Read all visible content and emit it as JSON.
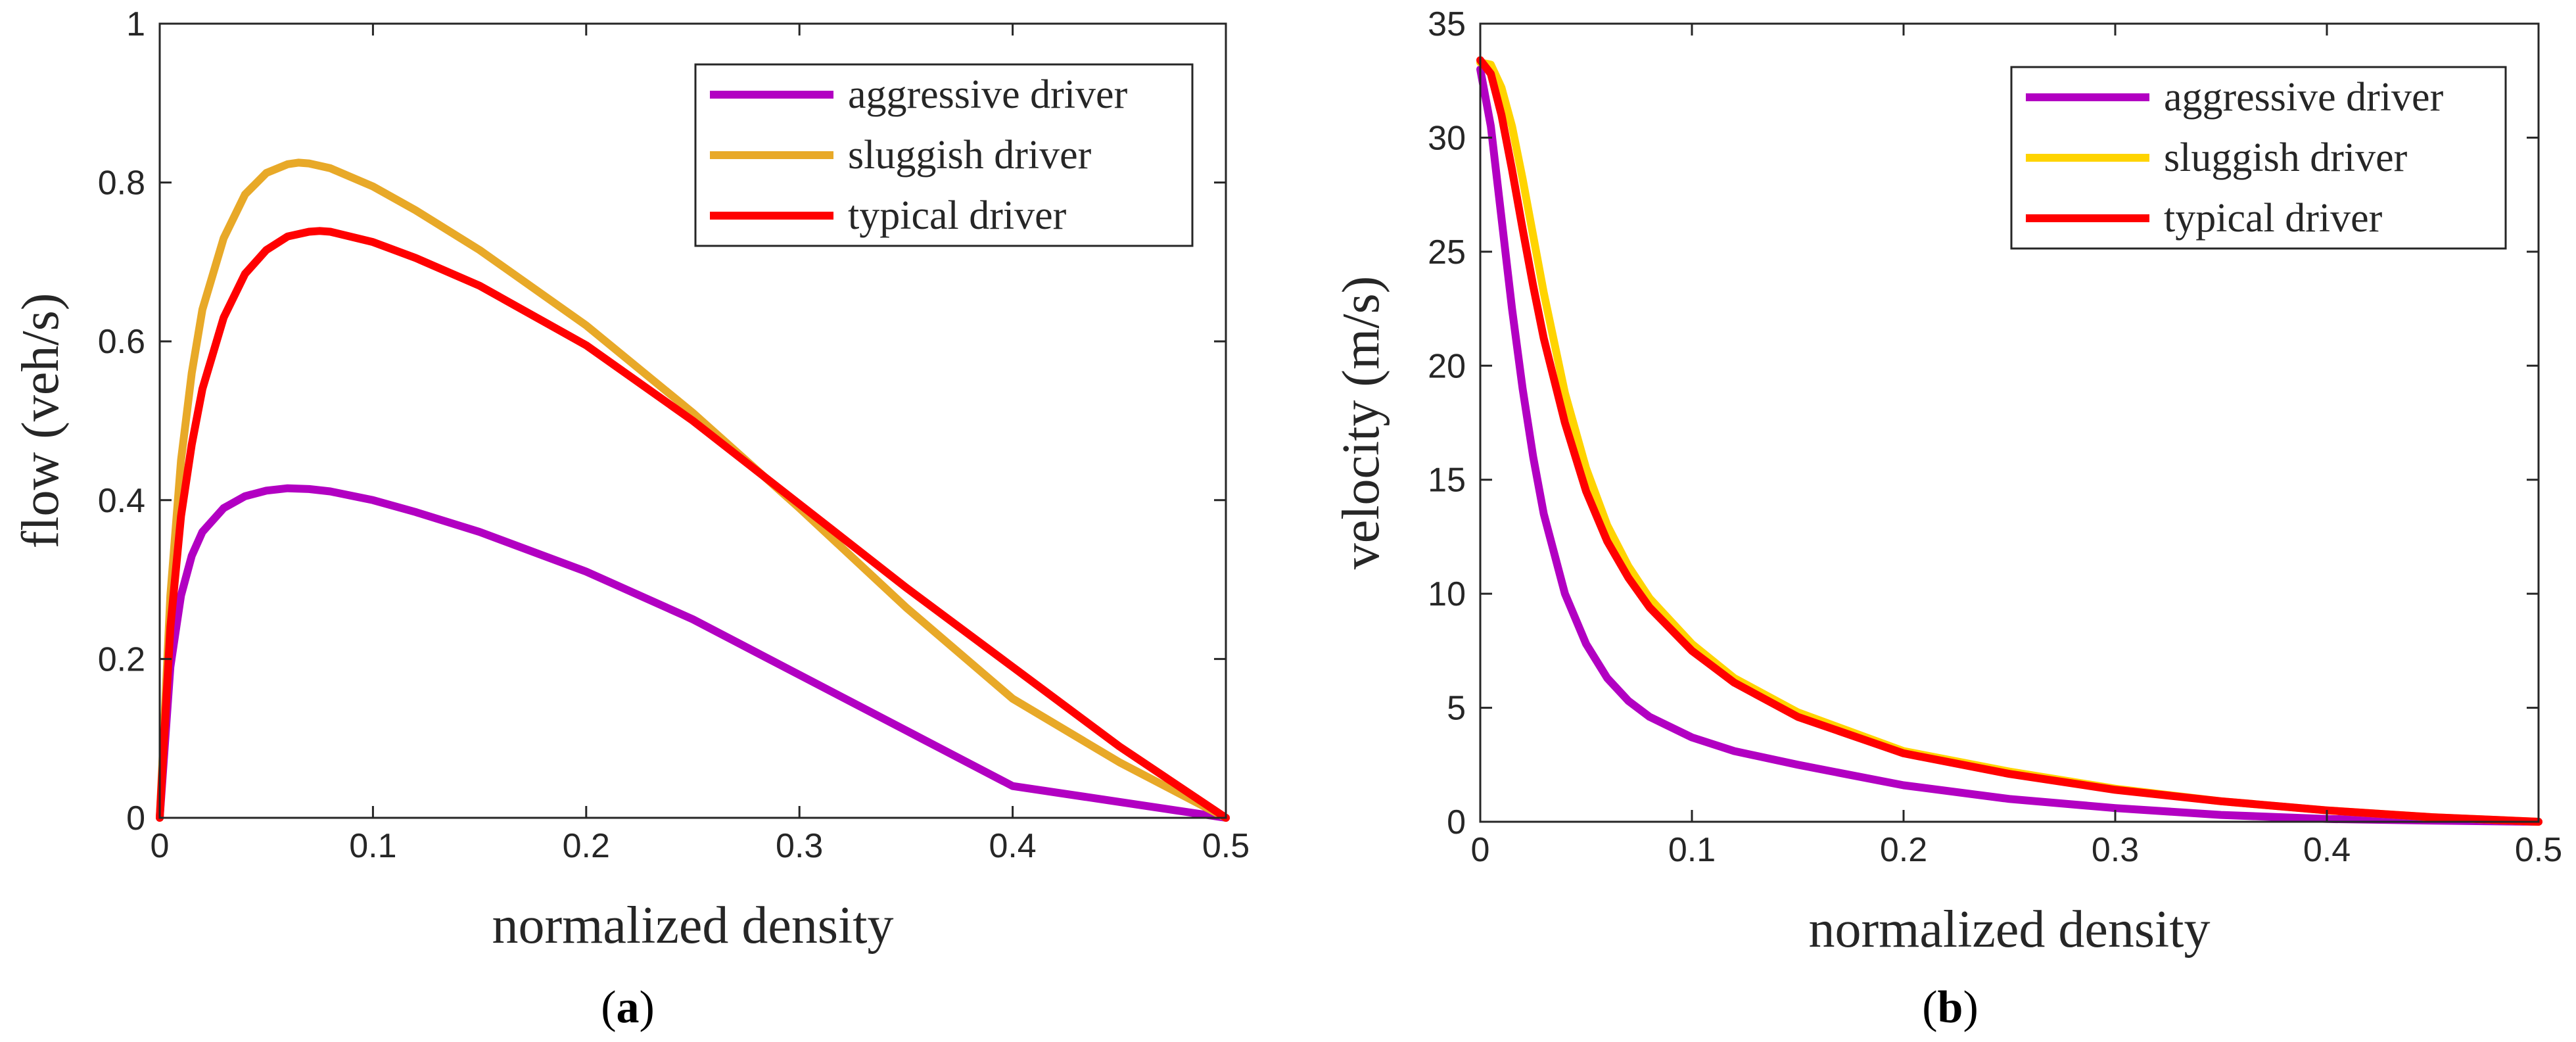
{
  "chart_data": [
    {
      "type": "line",
      "panel_label": "a",
      "title": "",
      "xlabel": "normalized density",
      "ylabel": "flow (veh/s)",
      "xlim": [
        0,
        0.5
      ],
      "ylim": [
        0,
        1
      ],
      "xticks": [
        "0",
        "0.1",
        "0.2",
        "0.3",
        "0.4",
        "0.5"
      ],
      "yticks": [
        "0",
        "0.2",
        "0.4",
        "0.6",
        "0.8",
        "1"
      ],
      "grid": false,
      "legend_position": "top-right",
      "series": [
        {
          "name": "aggressive driver",
          "color": "#B200C2",
          "x": [
            0,
            0.005,
            0.01,
            0.015,
            0.02,
            0.03,
            0.04,
            0.05,
            0.06,
            0.07,
            0.08,
            0.1,
            0.12,
            0.15,
            0.2,
            0.25,
            0.3,
            0.35,
            0.4,
            0.45,
            0.5
          ],
          "y": [
            0,
            0.19,
            0.28,
            0.33,
            0.36,
            0.39,
            0.405,
            0.412,
            0.415,
            0.414,
            0.411,
            0.4,
            0.385,
            0.36,
            0.31,
            0.25,
            0.18,
            0.11,
            0.04,
            0.02,
            0
          ]
        },
        {
          "name": "sluggish driver",
          "color": "#E8A928",
          "x": [
            0,
            0.005,
            0.01,
            0.015,
            0.02,
            0.03,
            0.04,
            0.05,
            0.06,
            0.065,
            0.07,
            0.08,
            0.1,
            0.12,
            0.15,
            0.2,
            0.25,
            0.3,
            0.35,
            0.4,
            0.45,
            0.5
          ],
          "y": [
            0,
            0.28,
            0.45,
            0.56,
            0.64,
            0.73,
            0.785,
            0.812,
            0.823,
            0.825,
            0.824,
            0.818,
            0.795,
            0.765,
            0.715,
            0.62,
            0.51,
            0.39,
            0.265,
            0.15,
            0.07,
            0
          ]
        },
        {
          "name": "typical driver",
          "color": "#FF0000",
          "x": [
            0,
            0.005,
            0.01,
            0.015,
            0.02,
            0.03,
            0.04,
            0.05,
            0.06,
            0.07,
            0.075,
            0.08,
            0.1,
            0.12,
            0.15,
            0.2,
            0.25,
            0.3,
            0.35,
            0.4,
            0.45,
            0.5
          ],
          "y": [
            0,
            0.24,
            0.38,
            0.47,
            0.54,
            0.63,
            0.685,
            0.715,
            0.732,
            0.738,
            0.739,
            0.738,
            0.725,
            0.705,
            0.67,
            0.595,
            0.5,
            0.395,
            0.29,
            0.19,
            0.09,
            0
          ]
        }
      ]
    },
    {
      "type": "line",
      "panel_label": "b",
      "title": "",
      "xlabel": "normalized density",
      "ylabel": "velocity (m/s)",
      "xlim": [
        0,
        0.5
      ],
      "ylim": [
        0,
        35
      ],
      "xticks": [
        "0",
        "0.1",
        "0.2",
        "0.3",
        "0.4",
        "0.5"
      ],
      "yticks": [
        "0",
        "5",
        "10",
        "15",
        "20",
        "25",
        "30",
        "35"
      ],
      "grid": false,
      "legend_position": "top-right",
      "series": [
        {
          "name": "aggressive driver",
          "color": "#B200C2",
          "x": [
            0,
            0.005,
            0.01,
            0.015,
            0.02,
            0.025,
            0.03,
            0.04,
            0.05,
            0.06,
            0.07,
            0.08,
            0.1,
            0.12,
            0.15,
            0.2,
            0.25,
            0.3,
            0.35,
            0.4,
            0.45,
            0.5
          ],
          "y": [
            33,
            30.5,
            26.5,
            22.5,
            19,
            16,
            13.5,
            10,
            7.8,
            6.3,
            5.3,
            4.6,
            3.7,
            3.1,
            2.5,
            1.6,
            1.0,
            0.6,
            0.3,
            0.12,
            0.05,
            0
          ]
        },
        {
          "name": "sluggish driver",
          "color": "#FFD400",
          "x": [
            0,
            0.005,
            0.01,
            0.015,
            0.02,
            0.025,
            0.03,
            0.04,
            0.05,
            0.06,
            0.07,
            0.08,
            0.1,
            0.12,
            0.15,
            0.2,
            0.25,
            0.3,
            0.35,
            0.4,
            0.45,
            0.5
          ],
          "y": [
            33.3,
            33.2,
            32.2,
            30.5,
            28.2,
            25.7,
            23.2,
            18.8,
            15.5,
            13,
            11.2,
            9.8,
            7.8,
            6.3,
            4.8,
            3.1,
            2.2,
            1.45,
            0.9,
            0.5,
            0.2,
            0
          ]
        },
        {
          "name": "typical driver",
          "color": "#FF0000",
          "x": [
            0,
            0.005,
            0.01,
            0.015,
            0.02,
            0.025,
            0.03,
            0.04,
            0.05,
            0.06,
            0.07,
            0.08,
            0.1,
            0.12,
            0.15,
            0.2,
            0.25,
            0.3,
            0.35,
            0.4,
            0.45,
            0.5
          ],
          "y": [
            33.4,
            32.8,
            31,
            28.6,
            26,
            23.5,
            21.2,
            17.5,
            14.5,
            12.3,
            10.7,
            9.4,
            7.5,
            6.1,
            4.6,
            3.0,
            2.1,
            1.4,
            0.9,
            0.5,
            0.2,
            0
          ]
        }
      ]
    }
  ]
}
